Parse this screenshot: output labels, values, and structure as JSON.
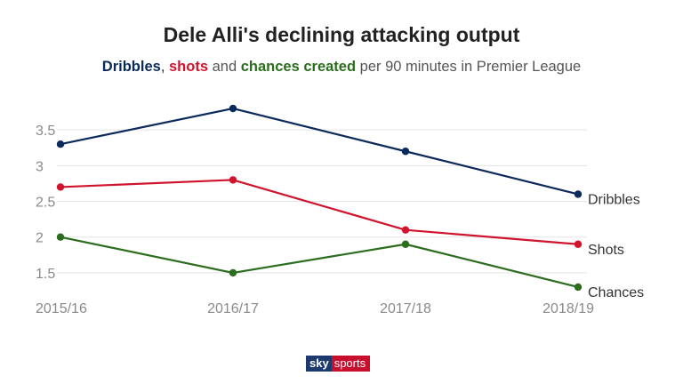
{
  "title": "Dele Alli's declining attacking output",
  "subtitle": {
    "dribbles": "Dribbles",
    "sep1": ",",
    "shots": "shots",
    "and": "and",
    "chances": "chances created",
    "rest": "per 90 minutes in Premier League"
  },
  "colors": {
    "dribbles": "#0b2a5c",
    "shots": "#d0142c",
    "chances": "#2a6d1c",
    "grid": "#e3e3e3"
  },
  "chart_data": {
    "type": "line",
    "categories": [
      "2015/16",
      "2016/17",
      "2017/18",
      "2018/19"
    ],
    "y_ticks": [
      1.5,
      2,
      2.5,
      3,
      3.5
    ],
    "y_tick_labels": [
      "1.5",
      "2",
      "2.5",
      "3",
      "3.5"
    ],
    "ylim": [
      1.25,
      3.85
    ],
    "grid": true,
    "legend": "end-of-line labels",
    "series": [
      {
        "key": "dribbles",
        "name": "Dribbles",
        "values": [
          3.3,
          3.8,
          3.2,
          2.6
        ]
      },
      {
        "key": "shots",
        "name": "Shots",
        "values": [
          2.7,
          2.8,
          2.1,
          1.9
        ]
      },
      {
        "key": "chances",
        "name": "Chances",
        "values": [
          2.0,
          1.5,
          1.9,
          1.3
        ]
      }
    ]
  },
  "logo": {
    "part1": "sky",
    "part2": "sports"
  }
}
